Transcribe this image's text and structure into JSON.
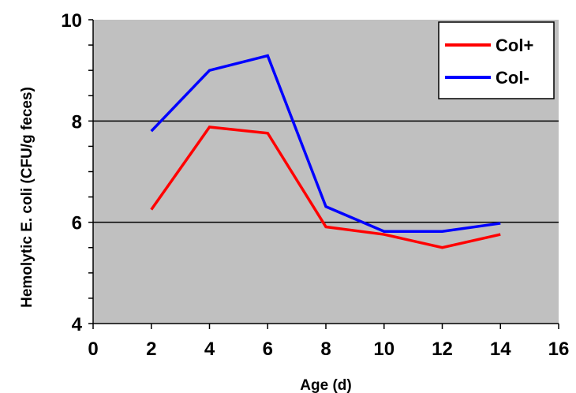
{
  "chart_data": {
    "type": "line",
    "title": "",
    "xlabel": "Age (d)",
    "ylabel": "Hemolytic E. coli (CFU/g feces)",
    "xlim": [
      0,
      16
    ],
    "ylim": [
      4,
      10
    ],
    "x_ticks": [
      "0",
      "2",
      "4",
      "6",
      "8",
      "10",
      "12",
      "14",
      "16"
    ],
    "y_ticks": [
      "4",
      "6",
      "8",
      "10"
    ],
    "gridlines_y": [
      6,
      8
    ],
    "legend_position": "top-right",
    "plot_background": "#c0c0c0",
    "series": [
      {
        "name": "Col+",
        "color": "#ff0000",
        "x": [
          2,
          4,
          6,
          8,
          10,
          12,
          14
        ],
        "y": [
          6.25,
          7.88,
          7.76,
          5.91,
          5.76,
          5.5,
          5.76
        ]
      },
      {
        "name": "Col-",
        "color": "#0000ff",
        "x": [
          2,
          4,
          6,
          8,
          10,
          12,
          14
        ],
        "y": [
          7.8,
          9.0,
          9.29,
          6.31,
          5.82,
          5.82,
          5.98
        ]
      }
    ]
  }
}
